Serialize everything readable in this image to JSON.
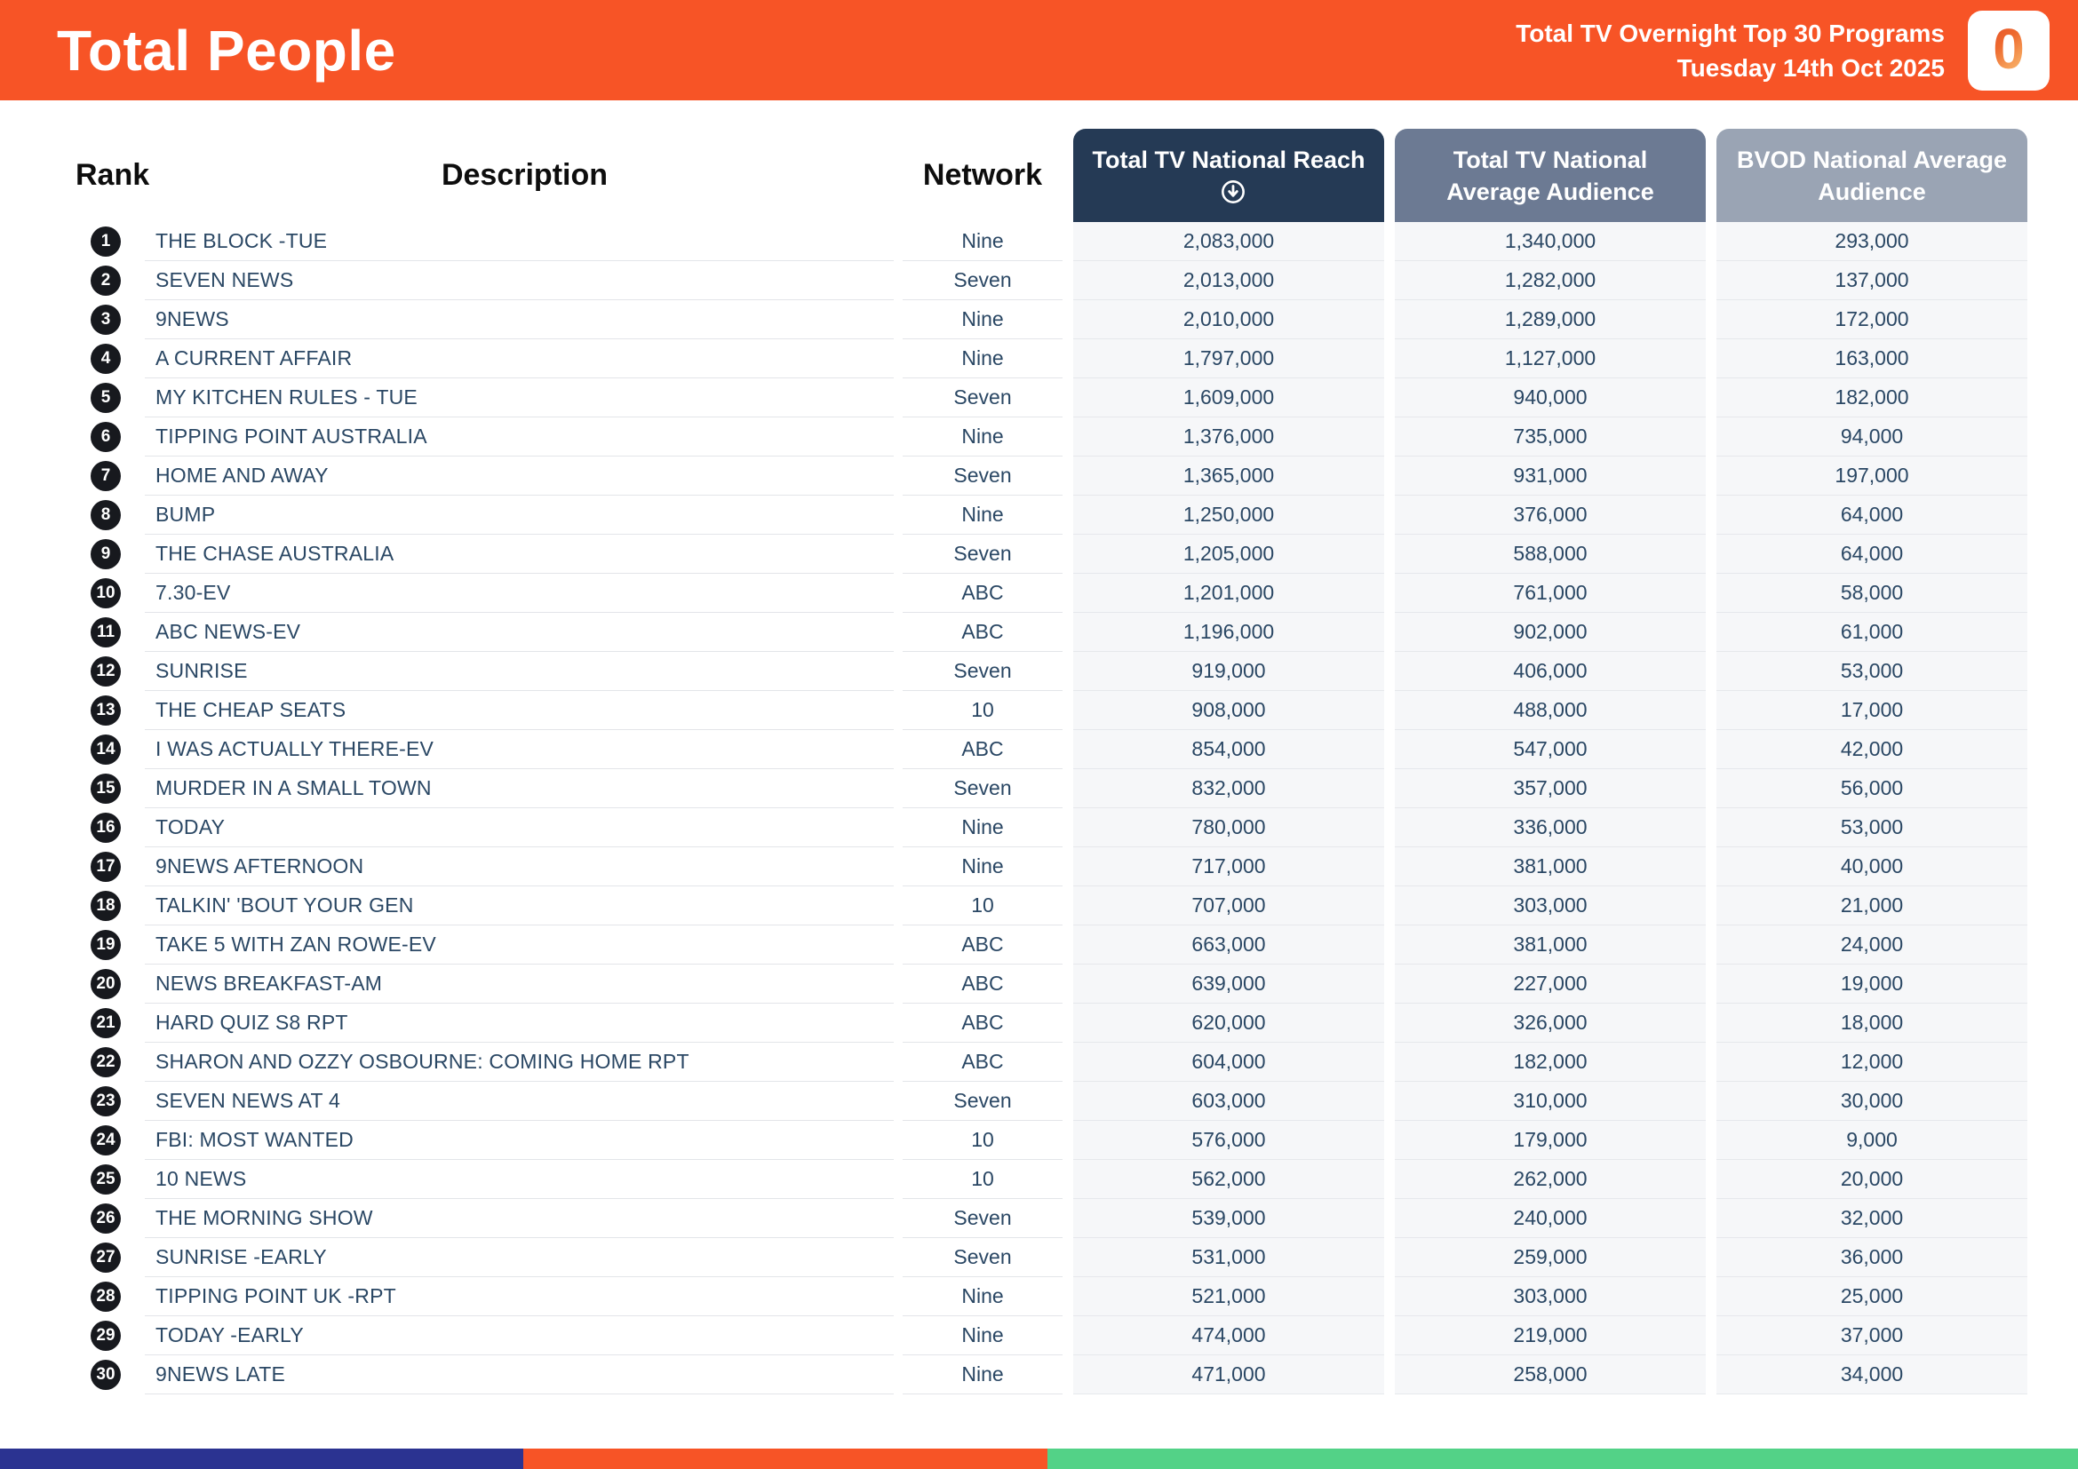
{
  "header": {
    "title": "Total People",
    "subtitle_line1": "Total TV Overnight Top 30 Programs",
    "subtitle_line2": "Tuesday 14th Oct 2025",
    "logo_glyph": "0"
  },
  "colors": {
    "accent_orange": "#F75426",
    "header_navy": "#253A55",
    "header_slate": "#6C7A93",
    "header_gray": "#9AA4B4",
    "footer_navy": "#2B3391",
    "footer_green": "#53D287",
    "row_text": "#2A4764",
    "rank_badge": "#17191E",
    "numeric_column_bg": "#F6F7F9"
  },
  "table": {
    "columns": {
      "rank": "Rank",
      "description": "Description",
      "network": "Network",
      "reach": "Total TV National Reach",
      "avg_audience": "Total TV National Average Audience",
      "bvod_audience": "BVOD National Average Audience"
    },
    "sort_icon": "circled-arrow-down",
    "rows": [
      {
        "rank": 1,
        "description": "THE BLOCK -TUE",
        "network": "Nine",
        "reach": "2,083,000",
        "avg_audience": "1,340,000",
        "bvod_audience": "293,000"
      },
      {
        "rank": 2,
        "description": "SEVEN NEWS",
        "network": "Seven",
        "reach": "2,013,000",
        "avg_audience": "1,282,000",
        "bvod_audience": "137,000"
      },
      {
        "rank": 3,
        "description": "9NEWS",
        "network": "Nine",
        "reach": "2,010,000",
        "avg_audience": "1,289,000",
        "bvod_audience": "172,000"
      },
      {
        "rank": 4,
        "description": "A CURRENT AFFAIR",
        "network": "Nine",
        "reach": "1,797,000",
        "avg_audience": "1,127,000",
        "bvod_audience": "163,000"
      },
      {
        "rank": 5,
        "description": "MY KITCHEN RULES - TUE",
        "network": "Seven",
        "reach": "1,609,000",
        "avg_audience": "940,000",
        "bvod_audience": "182,000"
      },
      {
        "rank": 6,
        "description": "TIPPING POINT AUSTRALIA",
        "network": "Nine",
        "reach": "1,376,000",
        "avg_audience": "735,000",
        "bvod_audience": "94,000"
      },
      {
        "rank": 7,
        "description": "HOME AND AWAY",
        "network": "Seven",
        "reach": "1,365,000",
        "avg_audience": "931,000",
        "bvod_audience": "197,000"
      },
      {
        "rank": 8,
        "description": "BUMP",
        "network": "Nine",
        "reach": "1,250,000",
        "avg_audience": "376,000",
        "bvod_audience": "64,000"
      },
      {
        "rank": 9,
        "description": "THE CHASE AUSTRALIA",
        "network": "Seven",
        "reach": "1,205,000",
        "avg_audience": "588,000",
        "bvod_audience": "64,000"
      },
      {
        "rank": 10,
        "description": "7.30-EV",
        "network": "ABC",
        "reach": "1,201,000",
        "avg_audience": "761,000",
        "bvod_audience": "58,000"
      },
      {
        "rank": 11,
        "description": "ABC NEWS-EV",
        "network": "ABC",
        "reach": "1,196,000",
        "avg_audience": "902,000",
        "bvod_audience": "61,000"
      },
      {
        "rank": 12,
        "description": "SUNRISE",
        "network": "Seven",
        "reach": "919,000",
        "avg_audience": "406,000",
        "bvod_audience": "53,000"
      },
      {
        "rank": 13,
        "description": "THE CHEAP SEATS",
        "network": "10",
        "reach": "908,000",
        "avg_audience": "488,000",
        "bvod_audience": "17,000"
      },
      {
        "rank": 14,
        "description": "I WAS ACTUALLY THERE-EV",
        "network": "ABC",
        "reach": "854,000",
        "avg_audience": "547,000",
        "bvod_audience": "42,000"
      },
      {
        "rank": 15,
        "description": "MURDER IN A SMALL TOWN",
        "network": "Seven",
        "reach": "832,000",
        "avg_audience": "357,000",
        "bvod_audience": "56,000"
      },
      {
        "rank": 16,
        "description": "TODAY",
        "network": "Nine",
        "reach": "780,000",
        "avg_audience": "336,000",
        "bvod_audience": "53,000"
      },
      {
        "rank": 17,
        "description": "9NEWS AFTERNOON",
        "network": "Nine",
        "reach": "717,000",
        "avg_audience": "381,000",
        "bvod_audience": "40,000"
      },
      {
        "rank": 18,
        "description": "TALKIN' 'BOUT YOUR GEN",
        "network": "10",
        "reach": "707,000",
        "avg_audience": "303,000",
        "bvod_audience": "21,000"
      },
      {
        "rank": 19,
        "description": "TAKE 5 WITH ZAN ROWE-EV",
        "network": "ABC",
        "reach": "663,000",
        "avg_audience": "381,000",
        "bvod_audience": "24,000"
      },
      {
        "rank": 20,
        "description": "NEWS BREAKFAST-AM",
        "network": "ABC",
        "reach": "639,000",
        "avg_audience": "227,000",
        "bvod_audience": "19,000"
      },
      {
        "rank": 21,
        "description": "HARD QUIZ S8 RPT",
        "network": "ABC",
        "reach": "620,000",
        "avg_audience": "326,000",
        "bvod_audience": "18,000"
      },
      {
        "rank": 22,
        "description": "SHARON AND OZZY OSBOURNE: COMING HOME RPT",
        "network": "ABC",
        "reach": "604,000",
        "avg_audience": "182,000",
        "bvod_audience": "12,000"
      },
      {
        "rank": 23,
        "description": "SEVEN NEWS AT 4",
        "network": "Seven",
        "reach": "603,000",
        "avg_audience": "310,000",
        "bvod_audience": "30,000"
      },
      {
        "rank": 24,
        "description": "FBI: MOST WANTED",
        "network": "10",
        "reach": "576,000",
        "avg_audience": "179,000",
        "bvod_audience": "9,000"
      },
      {
        "rank": 25,
        "description": "10 NEWS",
        "network": "10",
        "reach": "562,000",
        "avg_audience": "262,000",
        "bvod_audience": "20,000"
      },
      {
        "rank": 26,
        "description": "THE MORNING SHOW",
        "network": "Seven",
        "reach": "539,000",
        "avg_audience": "240,000",
        "bvod_audience": "32,000"
      },
      {
        "rank": 27,
        "description": "SUNRISE -EARLY",
        "network": "Seven",
        "reach": "531,000",
        "avg_audience": "259,000",
        "bvod_audience": "36,000"
      },
      {
        "rank": 28,
        "description": "TIPPING POINT UK -RPT",
        "network": "Nine",
        "reach": "521,000",
        "avg_audience": "303,000",
        "bvod_audience": "25,000"
      },
      {
        "rank": 29,
        "description": "TODAY -EARLY",
        "network": "Nine",
        "reach": "474,000",
        "avg_audience": "219,000",
        "bvod_audience": "37,000"
      },
      {
        "rank": 30,
        "description": "9NEWS LATE",
        "network": "Nine",
        "reach": "471,000",
        "avg_audience": "258,000",
        "bvod_audience": "34,000"
      }
    ]
  }
}
